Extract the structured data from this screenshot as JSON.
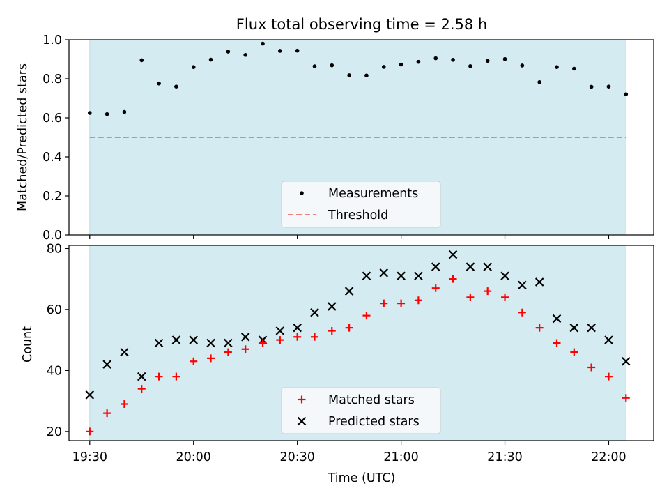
{
  "colors": {
    "shade": "#d4ebf1",
    "shade_edge": "#b8dfe4",
    "measurement": "#000000",
    "threshold": "#f08080",
    "matched": "#ff0000",
    "predicted": "#000000",
    "legend_bg": "#f4f8fb",
    "legend_edge": "#cccccc"
  },
  "chart_data": [
    {
      "type": "scatter",
      "title": "Flux total observing time = 2.58 h",
      "xlabel": "",
      "ylabel": "Matched/Predicted stars",
      "ylim": [
        0.0,
        1.0
      ],
      "yticks": [
        "0.0",
        "0.2",
        "0.4",
        "0.6",
        "0.8",
        "1.0"
      ],
      "xlim": [
        "19:24",
        "22:13"
      ],
      "shaded_interval": [
        "19:30",
        "22:05"
      ],
      "legend_position": "lower center",
      "x": [
        "19:30",
        "19:35",
        "19:40",
        "19:45",
        "19:50",
        "19:55",
        "20:00",
        "20:05",
        "20:10",
        "20:15",
        "20:20",
        "20:25",
        "20:30",
        "20:35",
        "20:40",
        "20:45",
        "20:50",
        "20:55",
        "21:00",
        "21:05",
        "21:10",
        "21:15",
        "21:20",
        "21:25",
        "21:30",
        "21:35",
        "21:40",
        "21:45",
        "21:50",
        "21:55",
        "22:00",
        "22:05"
      ],
      "series": [
        {
          "name": "Measurements",
          "marker": "dot",
          "values": [
            0.625,
            0.619,
            0.63,
            0.895,
            0.776,
            0.76,
            0.86,
            0.898,
            0.939,
            0.922,
            0.98,
            0.943,
            0.944,
            0.864,
            0.869,
            0.818,
            0.817,
            0.861,
            0.873,
            0.887,
            0.905,
            0.897,
            0.865,
            0.892,
            0.901,
            0.868,
            0.783,
            0.86,
            0.852,
            0.759,
            0.76,
            0.721
          ]
        },
        {
          "name": "Threshold",
          "marker": "dashed-line",
          "value": 0.5,
          "x_range": [
            "19:30",
            "22:05"
          ]
        }
      ]
    },
    {
      "type": "scatter",
      "title": "",
      "xlabel": "Time (UTC)",
      "ylabel": "Count",
      "ylim": [
        17,
        81
      ],
      "yticks": [
        "20",
        "40",
        "60",
        "80"
      ],
      "xlim": [
        "19:24",
        "22:13"
      ],
      "xticks": [
        "19:30",
        "20:00",
        "20:30",
        "21:00",
        "21:30",
        "22:00"
      ],
      "shaded_interval": [
        "19:30",
        "22:05"
      ],
      "legend_position": "lower center",
      "x": [
        "19:30",
        "19:35",
        "19:40",
        "19:45",
        "19:50",
        "19:55",
        "20:00",
        "20:05",
        "20:10",
        "20:15",
        "20:20",
        "20:25",
        "20:30",
        "20:35",
        "20:40",
        "20:45",
        "20:50",
        "20:55",
        "21:00",
        "21:05",
        "21:10",
        "21:15",
        "21:20",
        "21:25",
        "21:30",
        "21:35",
        "21:40",
        "21:45",
        "21:50",
        "21:55",
        "22:00",
        "22:05"
      ],
      "series": [
        {
          "name": "Matched stars",
          "marker": "plus",
          "values": [
            20,
            26,
            29,
            34,
            38,
            38,
            43,
            44,
            46,
            47,
            49,
            50,
            51,
            51,
            53,
            54,
            58,
            62,
            62,
            63,
            67,
            70,
            64,
            66,
            64,
            59,
            54,
            49,
            46,
            41,
            38,
            31
          ]
        },
        {
          "name": "Predicted stars",
          "marker": "x",
          "values": [
            32,
            42,
            46,
            38,
            49,
            50,
            50,
            49,
            49,
            51,
            50,
            53,
            54,
            59,
            61,
            66,
            71,
            72,
            71,
            71,
            74,
            78,
            74,
            74,
            71,
            68,
            69,
            57,
            54,
            54,
            50,
            43
          ]
        }
      ]
    }
  ]
}
